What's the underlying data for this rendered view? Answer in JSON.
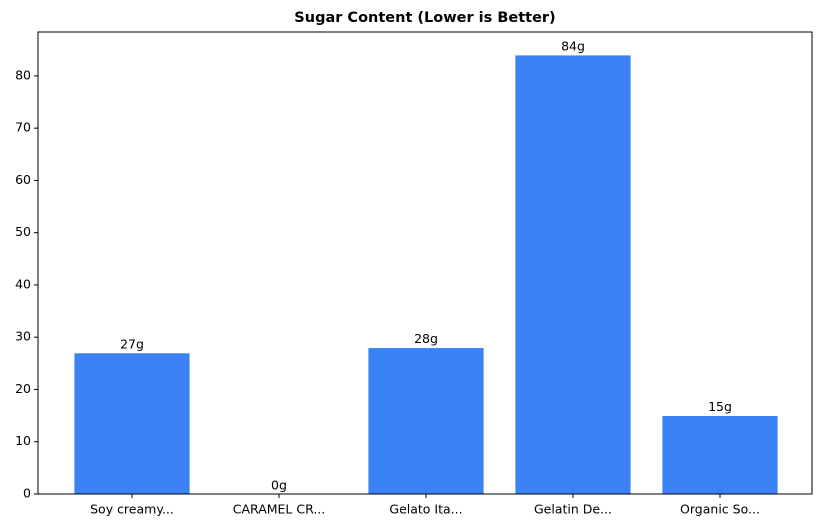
{
  "chart_data": {
    "type": "bar",
    "title": "Sugar Content (Lower is Better)",
    "categories": [
      "Soy creamy...",
      "CARAMEL CR...",
      "Gelato Ita...",
      "Gelatin De...",
      "Organic So..."
    ],
    "values": [
      27,
      0,
      28,
      84,
      15
    ],
    "value_labels": [
      "27g",
      "0g",
      "28g",
      "84g",
      "15g"
    ],
    "color": "#3b82f6",
    "ylim": [
      0,
      88.4
    ],
    "yticks": [
      0,
      10,
      20,
      30,
      40,
      50,
      60,
      70,
      80
    ],
    "grid": false
  }
}
